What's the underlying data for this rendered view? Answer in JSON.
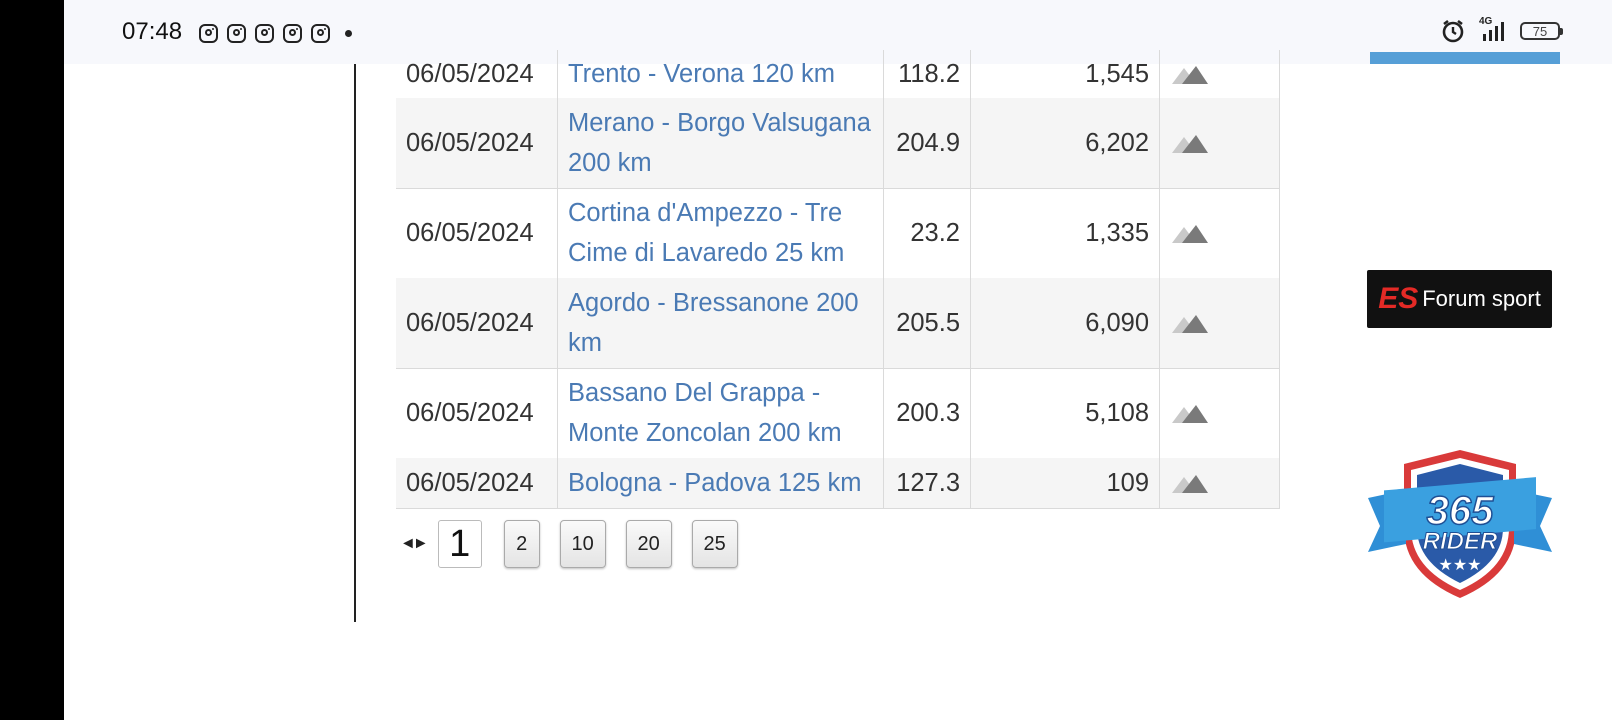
{
  "status_bar": {
    "time": "07:48",
    "notification_icons": [
      "instagram-icon",
      "instagram-icon",
      "instagram-icon",
      "instagram-icon",
      "instagram-icon"
    ],
    "network": "4G",
    "battery": "75"
  },
  "rides": [
    {
      "date": "06/05/2024",
      "name": "Trento - Verona 120 km",
      "distance": "118.2",
      "elevation": "1,545"
    },
    {
      "date": "06/05/2024",
      "name": "Merano - Borgo Valsugana 200 km",
      "distance": "204.9",
      "elevation": "6,202"
    },
    {
      "date": "06/05/2024",
      "name": "Cortina d'Ampezzo - Tre Cime di Lavaredo 25 km",
      "distance": "23.2",
      "elevation": "1,335"
    },
    {
      "date": "06/05/2024",
      "name": "Agordo - Bressanone 200 km",
      "distance": "205.5",
      "elevation": "6,090"
    },
    {
      "date": "06/05/2024",
      "name": "Bassano Del Grappa - Monte Zoncolan 200 km",
      "distance": "200.3",
      "elevation": "5,108"
    },
    {
      "date": "06/05/2024",
      "name": "Bologna - Padova 125 km",
      "distance": "127.3",
      "elevation": "109"
    }
  ],
  "pagination": {
    "arrow": "◄►",
    "current": "1",
    "pages": [
      "2",
      "10",
      "20",
      "25"
    ]
  },
  "ads": {
    "forum_sport": {
      "mark": "ES",
      "text": "Forum sport"
    },
    "rider_365": {
      "line1": "365",
      "line2": "RIDER"
    }
  },
  "colors": {
    "link": "#4a7ab4",
    "row_shade": "#f5f5f5"
  }
}
